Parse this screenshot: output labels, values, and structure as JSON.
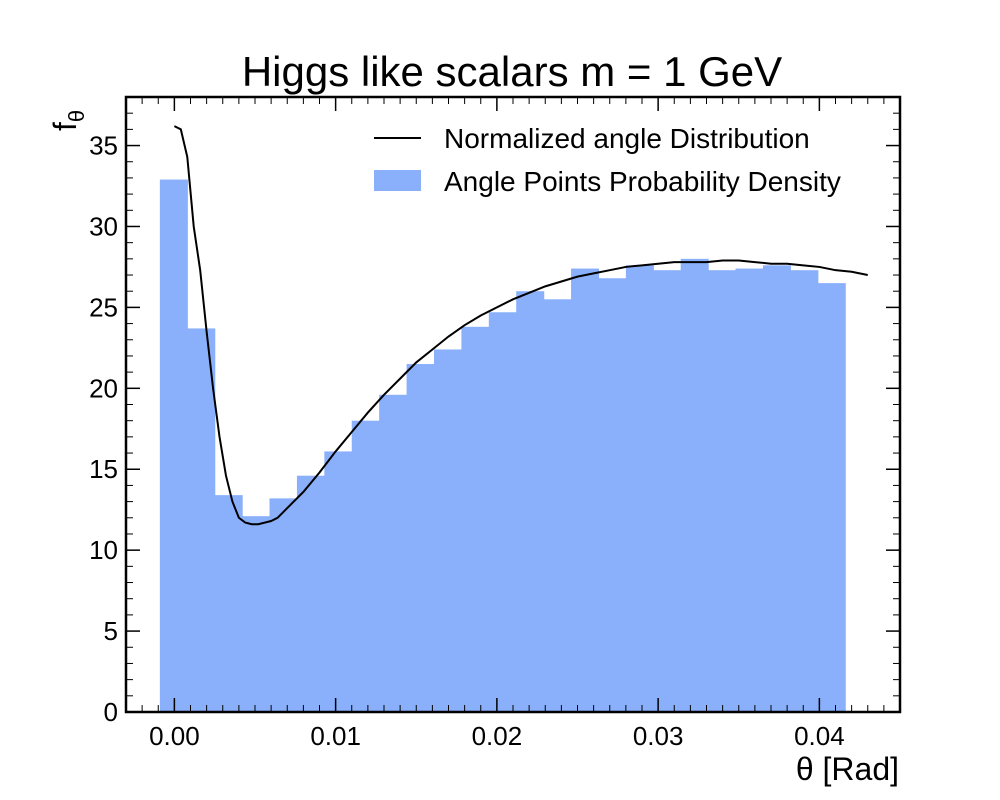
{
  "chart_data": {
    "type": "bar",
    "title": "Higgs like scalars m = 1 GeV",
    "xlabel": "θ [Rad]",
    "ylabel": "f",
    "ylabel_sub": "θ",
    "xlim": [
      -0.003,
      0.045
    ],
    "ylim": [
      0,
      38
    ],
    "xticks": [
      0.0,
      0.01,
      0.02,
      0.03,
      0.04
    ],
    "xtick_labels": [
      "0.00",
      "0.01",
      "0.02",
      "0.03",
      "0.04"
    ],
    "yticks": [
      0,
      5,
      10,
      15,
      20,
      25,
      30,
      35
    ],
    "ytick_labels": [
      "0",
      "5",
      "10",
      "15",
      "20",
      "25",
      "30",
      "35"
    ],
    "legend_placement": "top-right",
    "grid": false,
    "histogram": {
      "name": "Angle Points Probability Density",
      "color": "#8AB0FB",
      "bin_edges": [
        -0.0009,
        0.0008,
        0.0025,
        0.0042,
        0.0059,
        0.0076,
        0.0093,
        0.011,
        0.0127,
        0.0144,
        0.0161,
        0.0178,
        0.0195,
        0.0212,
        0.0229,
        0.0246,
        0.0263,
        0.028,
        0.0297,
        0.0314,
        0.0331,
        0.0348,
        0.0365,
        0.0382,
        0.0399,
        0.0416
      ],
      "values": [
        32.9,
        23.7,
        13.4,
        12.1,
        13.2,
        14.6,
        16.1,
        18.0,
        19.6,
        21.5,
        22.4,
        23.8,
        24.7,
        26.0,
        25.5,
        27.4,
        26.8,
        27.6,
        27.3,
        28.0,
        27.3,
        27.4,
        27.6,
        27.3,
        26.5
      ]
    },
    "series": [
      {
        "name": "Normalized angle Distribution",
        "color": "#000000",
        "x": [
          0.0,
          0.0004,
          0.0008,
          0.0012,
          0.0016,
          0.002,
          0.0024,
          0.0028,
          0.0032,
          0.0036,
          0.004,
          0.0044,
          0.0048,
          0.0052,
          0.0056,
          0.006,
          0.0064,
          0.007,
          0.008,
          0.009,
          0.01,
          0.011,
          0.012,
          0.013,
          0.014,
          0.015,
          0.016,
          0.017,
          0.018,
          0.019,
          0.02,
          0.021,
          0.022,
          0.023,
          0.024,
          0.025,
          0.026,
          0.027,
          0.028,
          0.029,
          0.03,
          0.031,
          0.032,
          0.033,
          0.034,
          0.035,
          0.036,
          0.037,
          0.038,
          0.039,
          0.04,
          0.041,
          0.042,
          0.043
        ],
        "y": [
          36.2,
          36.0,
          34.3,
          30.0,
          27.3,
          23.5,
          20.0,
          17.0,
          14.6,
          13.0,
          12.0,
          11.7,
          11.6,
          11.6,
          11.7,
          11.8,
          12.0,
          12.6,
          13.6,
          14.8,
          16.1,
          17.3,
          18.5,
          19.6,
          20.6,
          21.6,
          22.4,
          23.2,
          23.9,
          24.5,
          25.0,
          25.5,
          25.9,
          26.3,
          26.6,
          26.9,
          27.1,
          27.3,
          27.5,
          27.6,
          27.7,
          27.8,
          27.8,
          27.8,
          27.9,
          27.9,
          27.8,
          27.7,
          27.7,
          27.6,
          27.5,
          27.3,
          27.2,
          27.0
        ]
      }
    ]
  }
}
